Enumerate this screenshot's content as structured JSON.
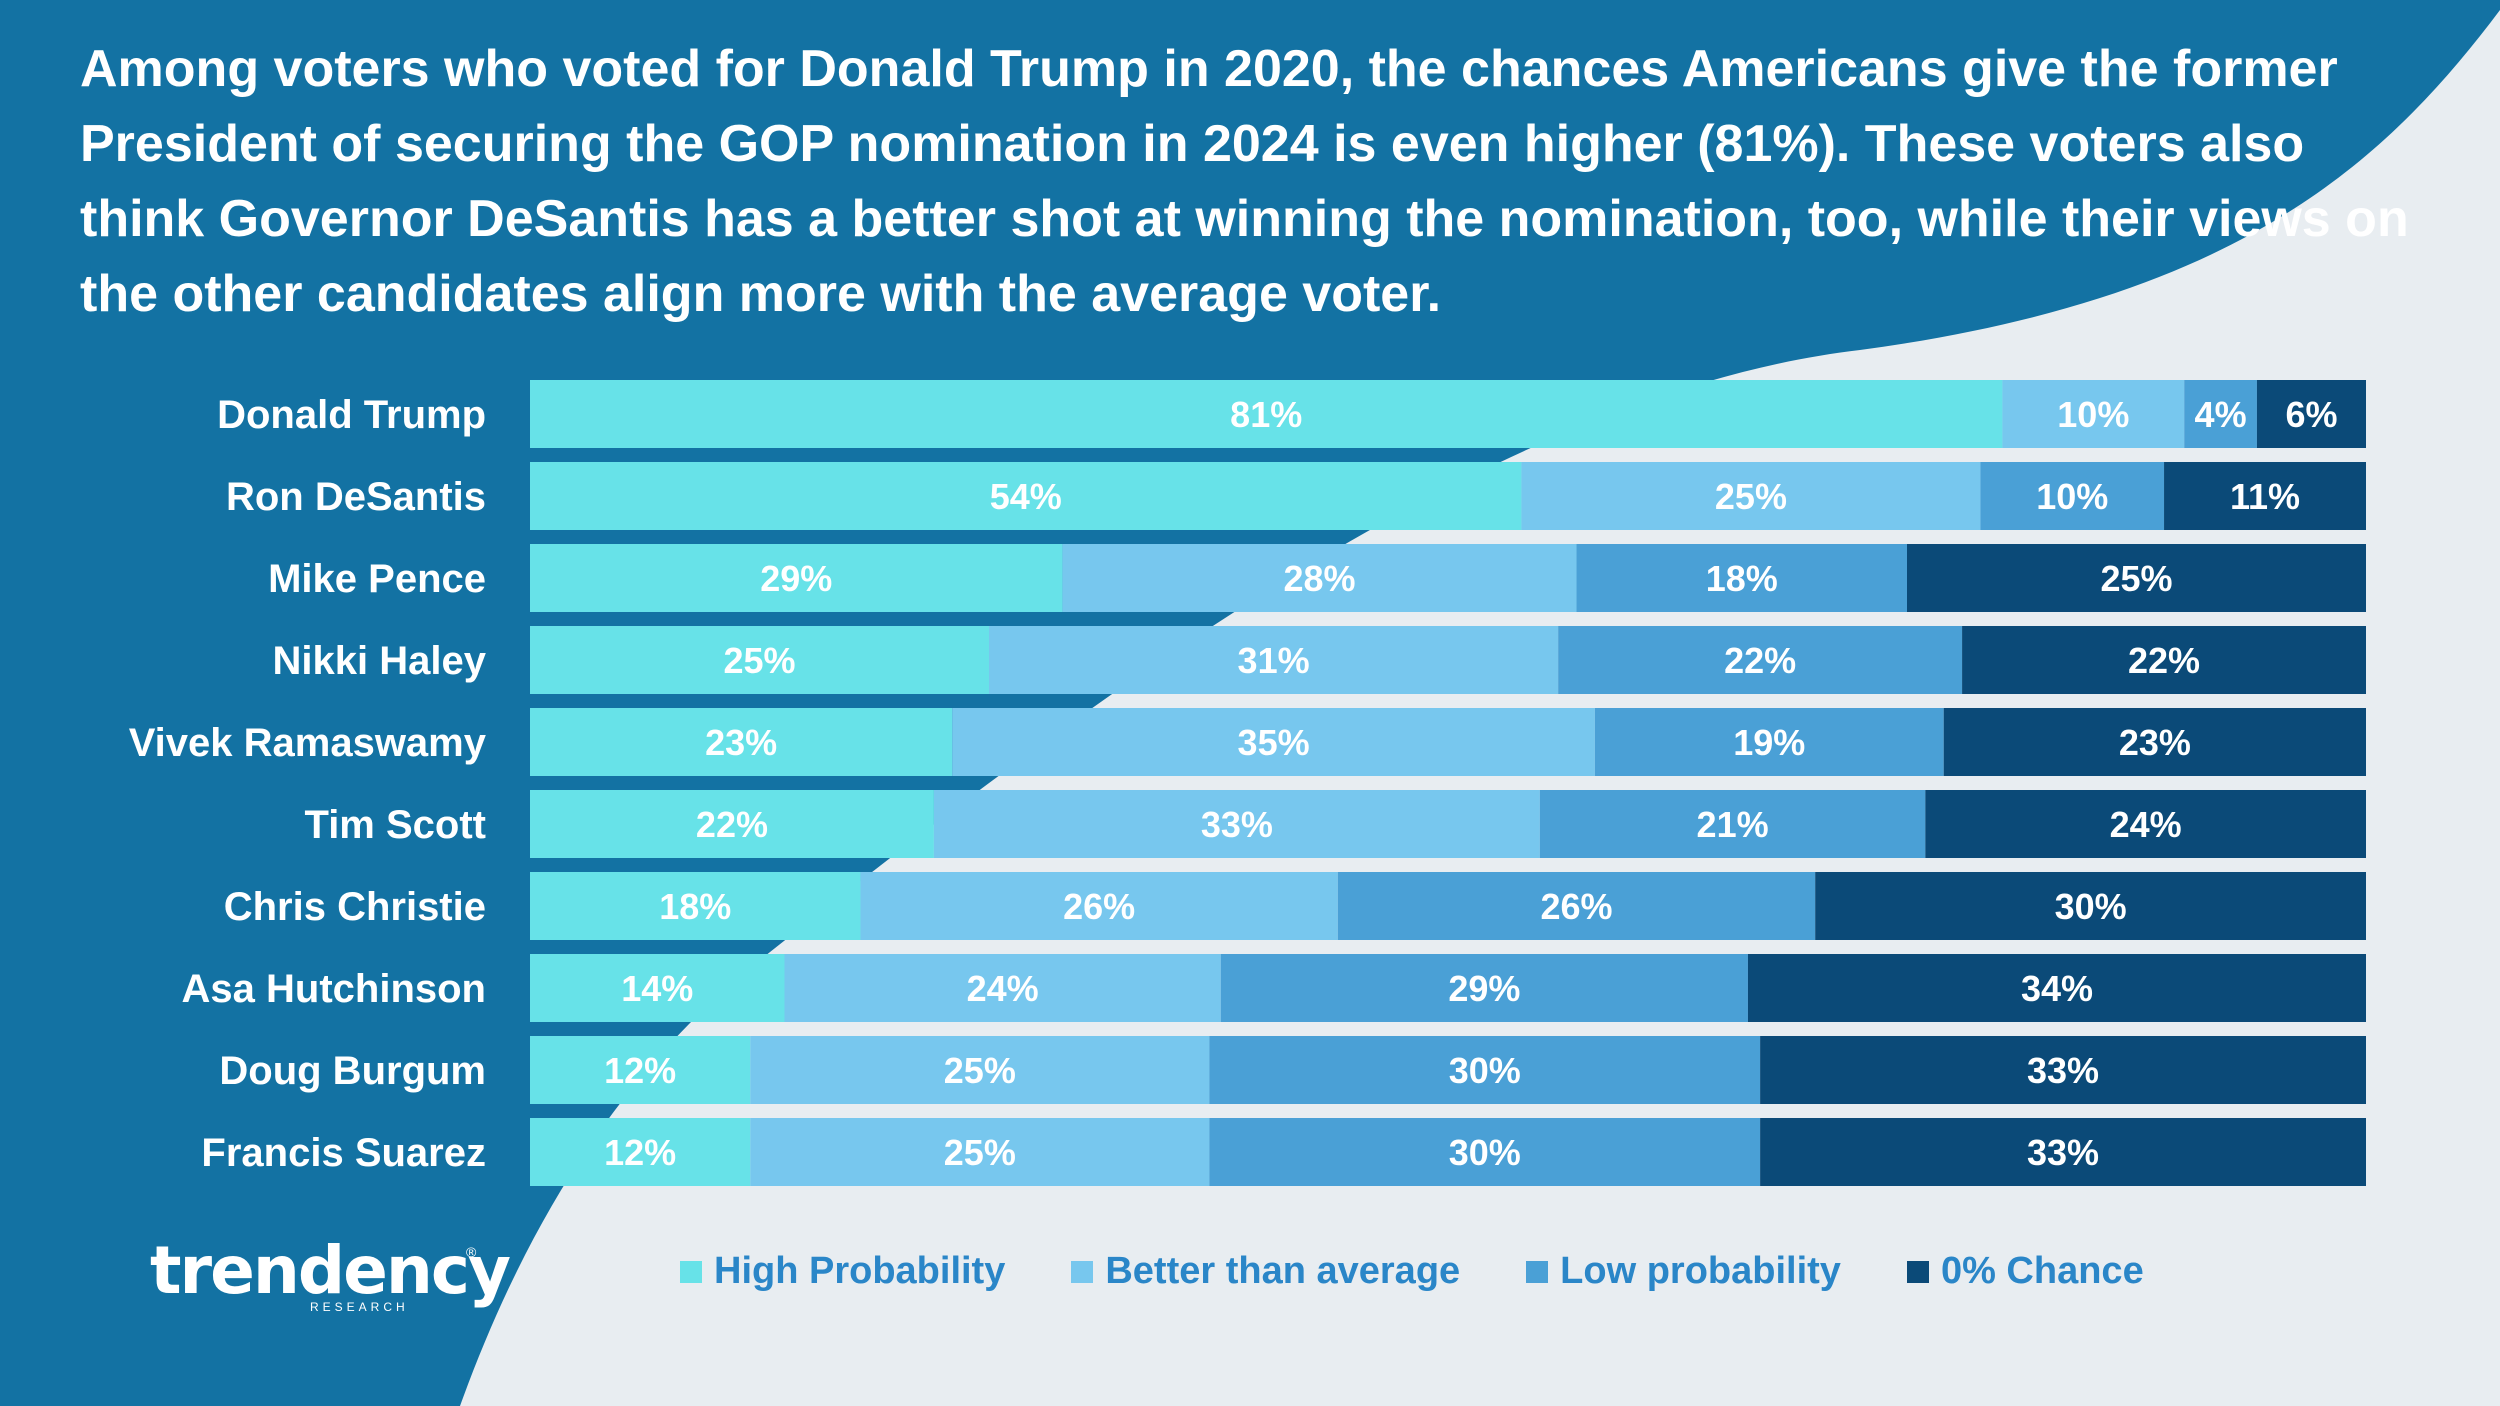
{
  "headline": "Among voters who voted for Donald Trump in 2020, the chances Americans give the former President of securing the GOP nomination in 2024 is even higher (81%). These voters also think Governor DeSantis has a better shot at winning the nomination, too, while their views on the other candidates align more with the average voter.",
  "brand": {
    "name": "trendency",
    "sub": "RESEARCH",
    "reg": "®"
  },
  "colors": {
    "background_blue": "#1372a3",
    "background_light": "#e8edf1",
    "high": "#67e2e8",
    "better": "#77c7ee",
    "low": "#4aa0d6",
    "zero": "#0b4a78",
    "category_text": "#ffffff",
    "legend_text": "#2a86c8"
  },
  "chart_data": {
    "type": "bar",
    "orientation": "horizontal",
    "stacked": true,
    "percent_total": 100,
    "legend_position": "bottom",
    "grid": false,
    "categories": [
      "Donald Trump",
      "Ron DeSantis",
      "Mike Pence",
      "Nikki Haley",
      "Vivek Ramaswamy",
      "Tim Scott",
      "Chris Christie",
      "Asa Hutchinson",
      "Doug Burgum",
      "Francis Suarez"
    ],
    "series": [
      {
        "name": "High Probability",
        "color": "#67e2e8",
        "values": [
          81,
          54,
          29,
          25,
          23,
          22,
          18,
          14,
          12,
          12
        ]
      },
      {
        "name": "Better than average",
        "color": "#77c7ee",
        "values": [
          10,
          25,
          28,
          31,
          35,
          33,
          26,
          24,
          25,
          25
        ]
      },
      {
        "name": "Low probability",
        "color": "#4aa0d6",
        "values": [
          4,
          10,
          18,
          22,
          19,
          21,
          26,
          29,
          30,
          30
        ]
      },
      {
        "name": "0% Chance",
        "color": "#0b4a78",
        "values": [
          6,
          11,
          25,
          22,
          23,
          24,
          30,
          34,
          33,
          33
        ]
      }
    ],
    "value_suffix": "%"
  }
}
